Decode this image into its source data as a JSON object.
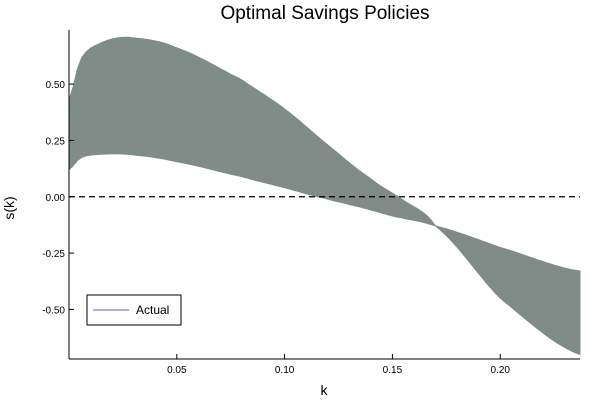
{
  "chart_data": {
    "type": "line",
    "title": "Optimal Savings Policies",
    "xlabel": "k",
    "ylabel": "s(k)",
    "xlim": [
      0.0,
      0.237
    ],
    "ylim": [
      -0.72,
      0.74
    ],
    "xticks": [
      0.05,
      0.1,
      0.15,
      0.2
    ],
    "xtick_labels": [
      "0.05",
      "0.10",
      "0.15",
      "0.20"
    ],
    "yticks": [
      -0.5,
      -0.25,
      0.0,
      0.25,
      0.5
    ],
    "ytick_labels": [
      "-0.50",
      "-0.25",
      "0.00",
      "0.25",
      "0.50"
    ],
    "grid": false,
    "legend": {
      "position": "bottom-left",
      "entries": [
        {
          "label": "Actual",
          "color": "#aab2e8"
        }
      ]
    },
    "reference_line": {
      "y": 0.0,
      "style": "dashed",
      "color": "#000000"
    },
    "band": {
      "description_none": "",
      "color": "#7f8c88",
      "lower_envelope": {
        "x": [
          0.0,
          0.005,
          0.01,
          0.02,
          0.03,
          0.05,
          0.08,
          0.1,
          0.12,
          0.13,
          0.15,
          0.17,
          0.2,
          0.237
        ],
        "y": [
          0.12,
          0.17,
          0.185,
          0.19,
          0.185,
          0.155,
          0.09,
          0.04,
          -0.01,
          -0.035,
          -0.085,
          -0.13,
          -0.225,
          -0.33
        ]
      },
      "upper_envelope": {
        "x": [
          0.0,
          0.005,
          0.01,
          0.02,
          0.03,
          0.05,
          0.08,
          0.1,
          0.12,
          0.14,
          0.155,
          0.17,
          0.2,
          0.237
        ],
        "y": [
          0.43,
          0.6,
          0.66,
          0.7,
          0.705,
          0.66,
          0.52,
          0.39,
          0.23,
          0.08,
          -0.015,
          -0.13,
          -0.45,
          -0.7
        ]
      }
    },
    "series": [
      {
        "name": "Actual",
        "color": "#aab2e8"
      }
    ],
    "colors": {
      "band": "#7f8c88",
      "legend_line": "#aab2e8",
      "axis": "#000000"
    }
  }
}
